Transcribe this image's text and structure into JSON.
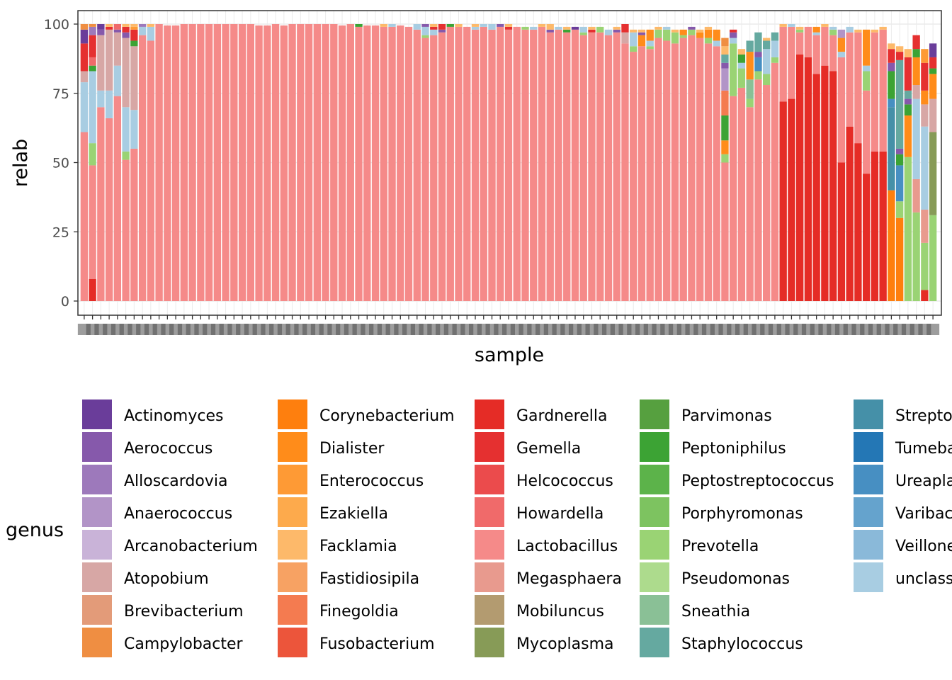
{
  "chart_data": {
    "type": "bar",
    "stacked": true,
    "xlabel": "sample",
    "ylabel": "relab",
    "ylim": [
      0,
      100
    ],
    "yticks": [
      0,
      25,
      50,
      75,
      100
    ],
    "x_tick_labels_note": "sample IDs are printed but fully overlapping and illegible",
    "grid": true,
    "legend": {
      "title": "genus",
      "position": "bottom",
      "columns": 5,
      "entries": [
        {
          "name": "Actinomyces",
          "color": "#6a3d9a"
        },
        {
          "name": "Aerococcus",
          "color": "#8659ab"
        },
        {
          "name": "Alloscardovia",
          "color": "#9d79bb"
        },
        {
          "name": "Anaerococcus",
          "color": "#b294c7"
        },
        {
          "name": "Arcanobacterium",
          "color": "#c9b3d8"
        },
        {
          "name": "Atopobium",
          "color": "#d7a7a5"
        },
        {
          "name": "Brevibacterium",
          "color": "#e39b79"
        },
        {
          "name": "Campylobacter",
          "color": "#ef8e42"
        },
        {
          "name": "Corynebacterium",
          "color": "#fe7f0e"
        },
        {
          "name": "Dialister",
          "color": "#ff8c1a"
        },
        {
          "name": "Enterococcus",
          "color": "#fe9a35"
        },
        {
          "name": "Ezakiella",
          "color": "#fdaa4c"
        },
        {
          "name": "Facklamia",
          "color": "#fdb96a"
        },
        {
          "name": "Fastidiosipila",
          "color": "#f7a263"
        },
        {
          "name": "Finegoldia",
          "color": "#f47b50"
        },
        {
          "name": "Fusobacterium",
          "color": "#ec553b"
        },
        {
          "name": "Gardnerella",
          "color": "#e52c26"
        },
        {
          "name": "Gemella",
          "color": "#e53030"
        },
        {
          "name": "Helcococcus",
          "color": "#eb4b4c"
        },
        {
          "name": "Howardella",
          "color": "#f06a6a"
        },
        {
          "name": "Lactobacillus",
          "color": "#f58a89"
        },
        {
          "name": "Megasphaera",
          "color": "#e89a8e"
        },
        {
          "name": "Mobiluncus",
          "color": "#b39b70"
        },
        {
          "name": "Mycoplasma",
          "color": "#879b57"
        },
        {
          "name": "Parvimonas",
          "color": "#56a03f"
        },
        {
          "name": "Peptoniphilus",
          "color": "#3ca334"
        },
        {
          "name": "Peptostreptococcus",
          "color": "#5cb34a"
        },
        {
          "name": "Porphyromonas",
          "color": "#7dc360"
        },
        {
          "name": "Prevotella",
          "color": "#9ad374"
        },
        {
          "name": "Pseudomonas",
          "color": "#addb8d"
        },
        {
          "name": "Sneathia",
          "color": "#8ac096"
        },
        {
          "name": "Staphylococcus",
          "color": "#65a9a0"
        },
        {
          "name": "Streptococcus",
          "color": "#4590a8"
        },
        {
          "name": "Tumebacillus",
          "color": "#2477b5"
        },
        {
          "name": "Ureaplasma",
          "color": "#478fc2"
        },
        {
          "name": "Varibaculum",
          "color": "#65a3cd"
        },
        {
          "name": "Veillonella",
          "color": "#8ab9d9"
        },
        {
          "name": "unclassified",
          "color": "#a8cde2"
        }
      ]
    },
    "series_order_bottom_to_top": [
      "Gardnerella",
      "Corynebacterium",
      "Lactobacillus",
      "Streptococcus",
      "Prevotella",
      "Ureaplasma",
      "Mycoplasma",
      "Megasphaera",
      "unclassified",
      "Atopobium",
      "Sneathia",
      "Dialister",
      "Peptoniphilus",
      "Finegoldia",
      "Anaerococcus",
      "Aerococcus",
      "Howardella",
      "Staphylococcus",
      "Gemella",
      "Alloscardovia",
      "Enterococcus",
      "Facklamia",
      "Actinomyces",
      "Porphyromonas",
      "Campylobacter"
    ],
    "samples": [
      {
        "Lactobacillus": 61,
        "unclassified": 18,
        "Gemella": 10,
        "Actinomyces": 5,
        "Atopobium": 4,
        "Campylobacter": 2
      },
      {
        "Lactobacillus": 41,
        "unclassified": 26,
        "Prevotella": 8,
        "Gardnerella": 8,
        "Gemella": 8,
        "Alloscardovia": 3,
        "Peptoniphilus": 2,
        "Howardella": 3,
        "Campylobacter": 1
      },
      {
        "Lactobacillus": 70,
        "Atopobium": 20,
        "unclassified": 6,
        "Aerococcus": 2,
        "Actinomyces": 2
      },
      {
        "Lactobacillus": 66,
        "Atopobium": 22,
        "unclassified": 10,
        "Gemella": 1,
        "Facklamia": 1
      },
      {
        "Lactobacillus": 74,
        "Atopobium": 12,
        "unclassified": 11,
        "Howardella": 2,
        "Aerococcus": 1
      },
      {
        "Lactobacillus": 51,
        "Atopobium": 25,
        "unclassified": 16,
        "Prevotella": 3,
        "Gemella": 2,
        "Aerococcus": 2,
        "Facklamia": 1
      },
      {
        "Lactobacillus": 55,
        "Atopobium": 23,
        "unclassified": 14,
        "Gemella": 4,
        "Peptoniphilus": 2,
        "Enterococcus": 1,
        "Facklamia": 1
      },
      {
        "Lactobacillus": 96,
        "unclassified": 3,
        "Alloscardovia": 1
      },
      {
        "Lactobacillus": 94,
        "unclassified": 5,
        "Facklamia": 1
      },
      {
        "Lactobacillus": 100
      },
      {
        "Lactobacillus": 99.5
      },
      {
        "Lactobacillus": 99.5
      },
      {
        "Lactobacillus": 100
      },
      {
        "Lactobacillus": 100
      },
      {
        "Lactobacillus": 100
      },
      {
        "Lactobacillus": 100
      },
      {
        "Lactobacillus": 100
      },
      {
        "Lactobacillus": 100
      },
      {
        "Lactobacillus": 100
      },
      {
        "Lactobacillus": 100
      },
      {
        "Lactobacillus": 100
      },
      {
        "Lactobacillus": 99.5
      },
      {
        "Lactobacillus": 99.5
      },
      {
        "Lactobacillus": 100
      },
      {
        "Lactobacillus": 99.5
      },
      {
        "Lactobacillus": 100
      },
      {
        "Lactobacillus": 100
      },
      {
        "Lactobacillus": 100
      },
      {
        "Lactobacillus": 100
      },
      {
        "Lactobacillus": 100
      },
      {
        "Lactobacillus": 100
      },
      {
        "Lactobacillus": 99.5
      },
      {
        "Lactobacillus": 100
      },
      {
        "Lactobacillus": 99,
        "Peptoniphilus": 1
      },
      {
        "Lactobacillus": 99.5
      },
      {
        "Lactobacillus": 99.5
      },
      {
        "Lactobacillus": 99,
        "Facklamia": 1
      },
      {
        "Lactobacillus": 99,
        "unclassified": 1
      },
      {
        "Lactobacillus": 99.5
      },
      {
        "Lactobacillus": 99
      },
      {
        "Lactobacillus": 98,
        "unclassified": 2
      },
      {
        "Lactobacillus": 95,
        "unclassified": 3,
        "Prevotella": 1,
        "Aerococcus": 1
      },
      {
        "Lactobacillus": 96,
        "unclassified": 2,
        "Gemella": 1,
        "Facklamia": 1
      },
      {
        "Lactobacillus": 97,
        "Gemella": 2,
        "Aerococcus": 1
      },
      {
        "Lactobacillus": 99,
        "Peptoniphilus": 1
      },
      {
        "Lactobacillus": 99,
        "Facklamia": 1
      },
      {
        "Lactobacillus": 99
      },
      {
        "Lactobacillus": 98,
        "unclassified": 1,
        "Facklamia": 1
      },
      {
        "Lactobacillus": 99,
        "unclassified": 1
      },
      {
        "Lactobacillus": 98,
        "unclassified": 2
      },
      {
        "Lactobacillus": 99,
        "Aerococcus": 1
      },
      {
        "Lactobacillus": 98,
        "Facklamia": 1,
        "Gemella": 1
      },
      {
        "Lactobacillus": 99
      },
      {
        "Lactobacillus": 98,
        "Prevotella": 1
      },
      {
        "Lactobacillus": 98,
        "unclassified": 1
      },
      {
        "Lactobacillus": 99,
        "Facklamia": 1
      },
      {
        "Lactobacillus": 97,
        "Aerococcus": 1,
        "Facklamia": 2
      },
      {
        "Lactobacillus": 98,
        "unclassified": 1
      },
      {
        "Lactobacillus": 97,
        "Peptoniphilus": 1,
        "Facklamia": 1
      },
      {
        "Lactobacillus": 98,
        "Actinomyces": 1
      },
      {
        "Lactobacillus": 96,
        "unclassified": 2,
        "Prevotella": 1
      },
      {
        "Lactobacillus": 97,
        "Facklamia": 1,
        "Gemella": 1
      },
      {
        "Lactobacillus": 97,
        "Prevotella": 2
      },
      {
        "Lactobacillus": 96,
        "unclassified": 2
      },
      {
        "Lactobacillus": 97,
        "Aerococcus": 1,
        "Facklamia": 1
      },
      {
        "Lactobacillus": 93,
        "Atopobium": 4,
        "Gemella": 3
      },
      {
        "Lactobacillus": 90,
        "unclassified": 5,
        "Prevotella": 2,
        "Facklamia": 1
      },
      {
        "Lactobacillus": 92,
        "Dialister": 4,
        "Aerococcus": 1,
        "Facklamia": 1
      },
      {
        "Lactobacillus": 91,
        "Dialister": 4,
        "unclassified": 2,
        "Prevotella": 1
      },
      {
        "Lactobacillus": 95,
        "Prevotella": 3,
        "Facklamia": 1
      },
      {
        "Lactobacillus": 94,
        "Prevotella": 4,
        "unclassified": 1
      },
      {
        "Lactobacillus": 93,
        "Prevotella": 4,
        "Facklamia": 1
      },
      {
        "Lactobacillus": 95,
        "Dialister": 2,
        "Prevotella": 1
      },
      {
        "Lactobacillus": 96,
        "Prevotella": 2,
        "Aerococcus": 1
      },
      {
        "Lactobacillus": 95,
        "Dialister": 2,
        "Facklamia": 1
      },
      {
        "Lactobacillus": 93,
        "Dialister": 3,
        "Prevotella": 2,
        "Facklamia": 1
      },
      {
        "Lactobacillus": 92,
        "Dialister": 4,
        "unclassified": 2
      },
      {
        "Lactobacillus": 50,
        "Peptoniphilus": 9,
        "Finegoldia": 9,
        "Anaerococcus": 8,
        "Dialister": 5,
        "Staphylococcus": 3,
        "Facklamia": 3,
        "Campylobacter": 3,
        "Prevotella": 3,
        "Aerococcus": 2
      },
      {
        "Lactobacillus": 74,
        "Prevotella": 19,
        "unclassified": 2,
        "Aerococcus": 2,
        "Gemella": 1
      },
      {
        "Lactobacillus": 77,
        "Prevotella": 7,
        "Peptoniphilus": 3,
        "Facklamia": 2,
        "unclassified": 2
      },
      {
        "Lactobacillus": 70,
        "Dialister": 10,
        "Sneathia": 7,
        "Staphylococcus": 4,
        "Prevotella": 3
      },
      {
        "Lactobacillus": 80,
        "Staphylococcus": 7,
        "Ureaplasma": 5,
        "Prevotella": 3,
        "Aerococcus": 2
      },
      {
        "Lactobacillus": 78,
        "unclassified": 9,
        "Prevotella": 4,
        "Staphylococcus": 3,
        "Facklamia": 1
      },
      {
        "Lactobacillus": 86,
        "unclassified": 6,
        "Staphylococcus": 3,
        "Prevotella": 2
      },
      {
        "Gardnerella": 72,
        "Lactobacillus": 27,
        "Facklamia": 1
      },
      {
        "Gardnerella": 73,
        "Lactobacillus": 26,
        "unclassified": 1
      },
      {
        "Gardnerella": 89,
        "Lactobacillus": 8,
        "Prevotella": 1,
        "Facklamia": 1
      },
      {
        "Gardnerella": 88,
        "Lactobacillus": 11
      },
      {
        "Gardnerella": 82,
        "Lactobacillus": 14,
        "Dialister": 2,
        "unclassified": 1
      },
      {
        "Gardnerella": 85,
        "Lactobacillus": 14,
        "Facklamia": 1
      },
      {
        "Gardnerella": 83,
        "Lactobacillus": 13,
        "Prevotella": 2,
        "unclassified": 1
      },
      {
        "Gardnerella": 50,
        "Lactobacillus": 38,
        "Dialister": 5,
        "Anaerococcus": 3,
        "unclassified": 2
      },
      {
        "Gardnerella": 63,
        "Lactobacillus": 34,
        "unclassified": 2
      },
      {
        "Gardnerella": 57,
        "Lactobacillus": 40,
        "Facklamia": 1
      },
      {
        "Gardnerella": 46,
        "Lactobacillus": 30,
        "Dialister": 13,
        "Prevotella": 7,
        "unclassified": 2
      },
      {
        "Gardnerella": 54,
        "Lactobacillus": 43,
        "Facklamia": 1
      },
      {
        "Gardnerella": 54,
        "Lactobacillus": 44,
        "Facklamia": 1
      },
      {
        "Corynebacterium": 40,
        "Streptococcus": 30,
        "Peptoniphilus": 10,
        "Gemella": 5,
        "Ureaplasma": 3,
        "Aerococcus": 3,
        "Facklamia": 2
      },
      {
        "Staphylococcus": 32,
        "Corynebacterium": 30,
        "Ureaplasma": 13,
        "Prevotella": 6,
        "Peptoniphilus": 4,
        "Gemella": 3,
        "Aerococcus": 2,
        "Facklamia": 2
      },
      {
        "Prevotella": 52,
        "Dialister": 15,
        "Gemella": 12,
        "Peptoniphilus": 4,
        "Staphylococcus": 3,
        "Facklamia": 3,
        "Aerococcus": 2
      },
      {
        "Prevotella": 32,
        "unclassified": 29,
        "Megasphaera": 12,
        "Atopobium": 5,
        "Dialister": 10,
        "Gemella": 5,
        "Peptoniphilus": 3
      },
      {
        "unclassified": 30,
        "Prevotella": 17,
        "Megasphaera": 12,
        "Atopobium": 8,
        "Gemella": 10,
        "Dialister": 5,
        "Enterococcus": 5,
        "Gardnerella": 4
      },
      {
        "Prevotella": 31,
        "Mycoplasma": 30,
        "Atopobium": 12,
        "Dialister": 9,
        "Actinomyces": 5,
        "Gemella": 4,
        "Peptoniphilus": 2
      }
    ]
  }
}
